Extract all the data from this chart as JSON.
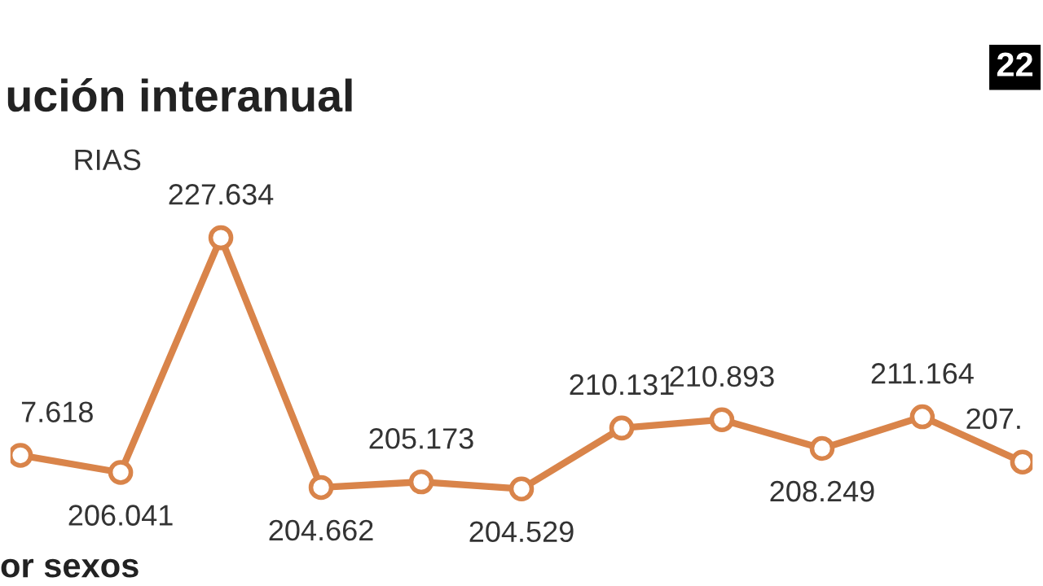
{
  "chart_data": {
    "type": "line",
    "title": "ución interanual",
    "subtitle": "RIAS",
    "annotations": [
      "22",
      "or sexos",
      "7.618"
    ],
    "categories": [
      null,
      null,
      null,
      null,
      null,
      null,
      null,
      null,
      null,
      null,
      null
    ],
    "series": [
      {
        "color": "#d9844a",
        "values": [
          207.618,
          206.041,
          227.634,
          204.662,
          205.173,
          204.529,
          210.131,
          210.893,
          208.249,
          211.164,
          207
        ],
        "value_labels": [
          null,
          "206.041",
          "227.634",
          "204.662",
          "205.173",
          "204.529",
          "210.131",
          "210.893",
          "208.249",
          "211.164",
          "207."
        ]
      }
    ],
    "marker": "circle",
    "line_style": "solid",
    "legend": false,
    "tick_labels": false
  }
}
